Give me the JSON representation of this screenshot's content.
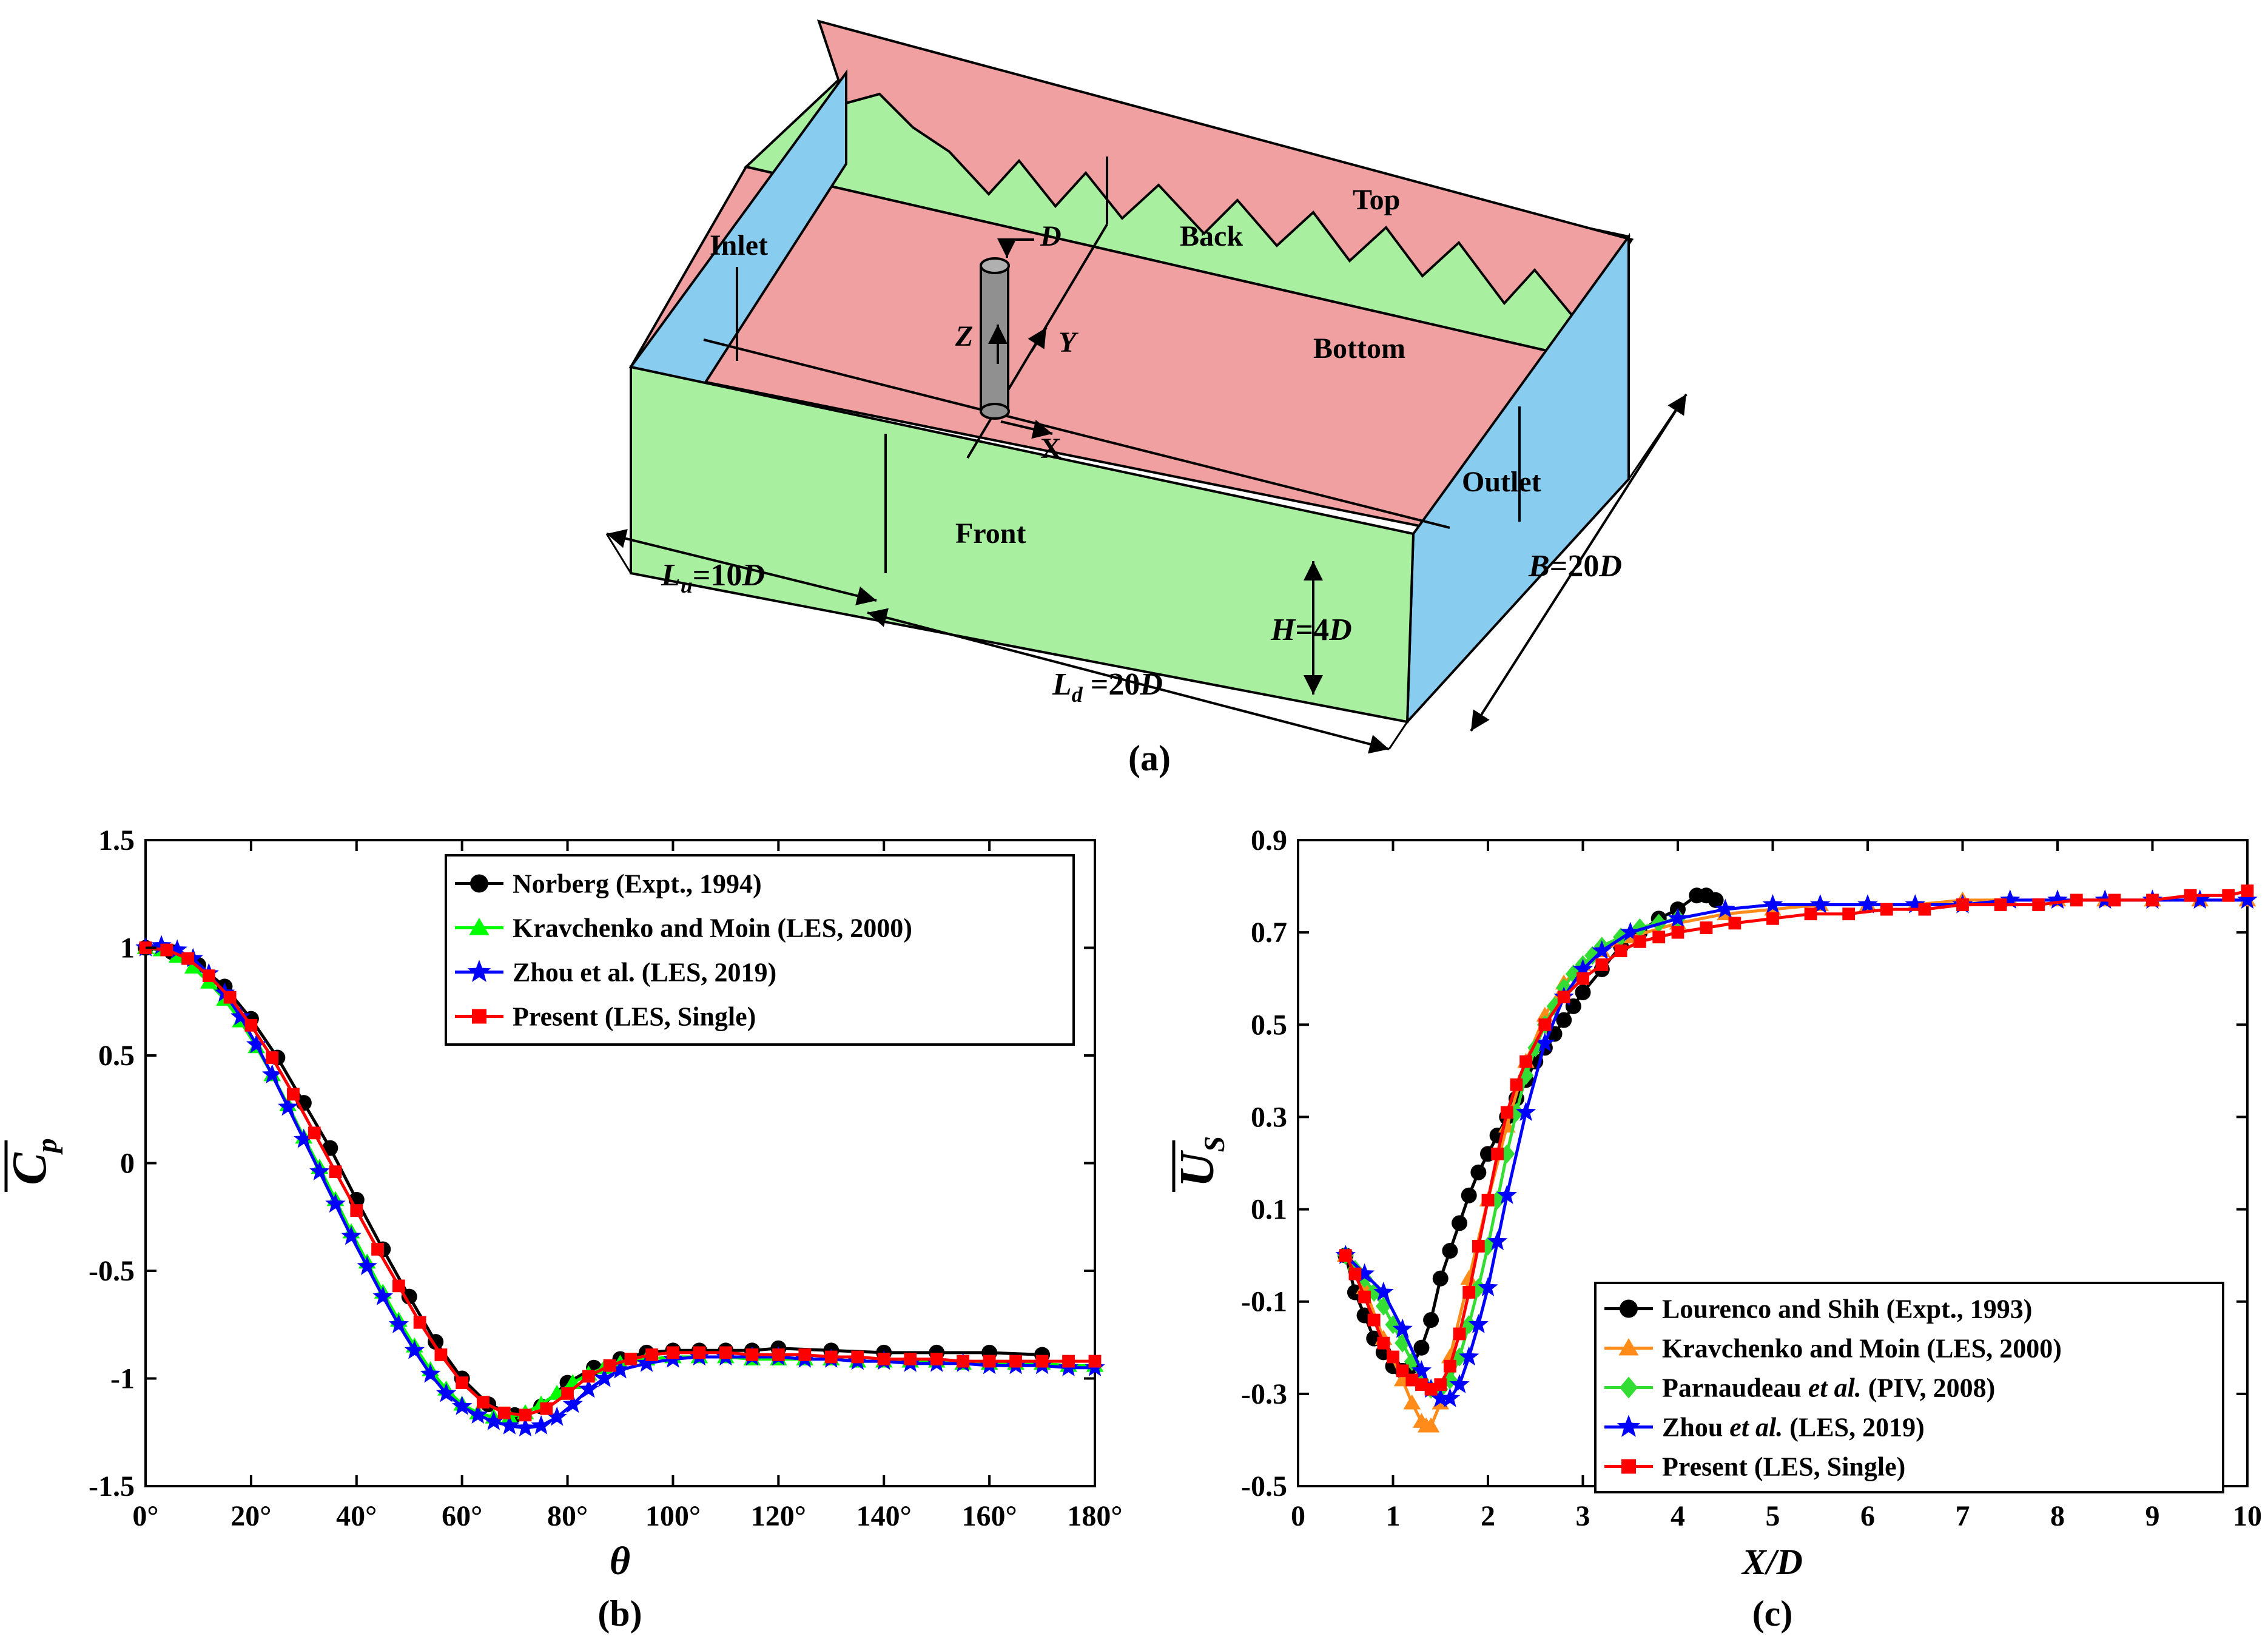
{
  "colors": {
    "black": "#000000",
    "green": "#00ff00",
    "blue": "#0000ff",
    "red": "#ff0000",
    "orange": "#ff8c1a",
    "limegreen": "#33dd33",
    "face_pink": "#f0a0a0",
    "face_green": "#a8f0a0",
    "face_blue": "#88ccf0",
    "cylinder": "#909090"
  },
  "panel_a": {
    "caption": "(a)",
    "labels": {
      "inlet": "Inlet",
      "outlet": "Outlet",
      "top": "Top",
      "back": "Back",
      "bottom": "Bottom",
      "front": "Front",
      "d": "D",
      "z": "Z",
      "y": "Y",
      "x": "X",
      "lu": "L",
      "lu_sub": "u",
      "lu_val": "=10",
      "lu_d": "D",
      "ld": "L",
      "ld_sub": "d",
      "ld_val": " =20",
      "ld_d": "D",
      "h": "H",
      "h_val": "=4",
      "h_d": "D",
      "b": "B",
      "b_val": "=20",
      "b_d": "D"
    }
  },
  "chart_data": [
    {
      "type": "line",
      "panel": "(b)",
      "caption": "(b)",
      "xlabel": "θ",
      "ylabel": "C",
      "ylabel_sub": "p",
      "xlim": [
        0,
        180
      ],
      "ylim": [
        -1.5,
        1.5
      ],
      "xticks": [
        0,
        20,
        40,
        60,
        80,
        100,
        120,
        140,
        160,
        180
      ],
      "xtick_labels": [
        "0°",
        "20°",
        "40°",
        "60°",
        "80°",
        "100°",
        "120°",
        "140°",
        "160°",
        "180°"
      ],
      "yticks": [
        -1.5,
        -1,
        -0.5,
        0,
        0.5,
        1,
        1.5
      ],
      "ytick_labels": [
        "-1.5",
        "-1",
        "-0.5",
        "0",
        "0.5",
        "1",
        "1.5"
      ],
      "legend_position": "top-right",
      "series": [
        {
          "name": "Norberg (Expt., 1994)",
          "color": "#000000",
          "marker": "circle",
          "x": [
            0,
            5,
            10,
            15,
            20,
            25,
            30,
            35,
            40,
            45,
            50,
            55,
            60,
            65,
            70,
            75,
            80,
            85,
            90,
            95,
            100,
            105,
            110,
            115,
            120,
            130,
            140,
            150,
            160,
            170
          ],
          "y": [
            1.0,
            0.98,
            0.92,
            0.82,
            0.67,
            0.49,
            0.28,
            0.07,
            -0.17,
            -0.4,
            -0.62,
            -0.83,
            -1.0,
            -1.12,
            -1.17,
            -1.13,
            -1.02,
            -0.95,
            -0.91,
            -0.88,
            -0.87,
            -0.87,
            -0.87,
            -0.87,
            -0.86,
            -0.87,
            -0.88,
            -0.88,
            -0.88,
            -0.89
          ]
        },
        {
          "name": "Kravchenko and Moin (LES, 2000)",
          "color": "#00ff00",
          "marker": "triangle",
          "x": [
            0,
            3,
            6,
            9,
            12,
            15,
            18,
            21,
            24,
            27,
            30,
            33,
            36,
            39,
            42,
            45,
            48,
            51,
            54,
            57,
            60,
            63,
            66,
            69,
            72,
            75,
            78,
            81,
            84,
            87,
            90,
            95,
            100,
            105,
            110,
            115,
            120,
            125,
            130,
            135,
            140,
            145,
            150,
            155,
            160,
            165,
            170,
            175,
            180
          ],
          "y": [
            1.0,
            0.99,
            0.96,
            0.91,
            0.84,
            0.76,
            0.66,
            0.54,
            0.41,
            0.27,
            0.12,
            -0.02,
            -0.17,
            -0.32,
            -0.46,
            -0.6,
            -0.73,
            -0.85,
            -0.96,
            -1.05,
            -1.12,
            -1.16,
            -1.18,
            -1.18,
            -1.16,
            -1.12,
            -1.07,
            -1.02,
            -0.98,
            -0.95,
            -0.93,
            -0.91,
            -0.9,
            -0.9,
            -0.9,
            -0.91,
            -0.91,
            -0.91,
            -0.91,
            -0.92,
            -0.92,
            -0.92,
            -0.92,
            -0.93,
            -0.93,
            -0.93,
            -0.93,
            -0.94,
            -0.94
          ]
        },
        {
          "name": "Zhou et al. (LES, 2019)",
          "color": "#0000ff",
          "marker": "star",
          "x": [
            0,
            3,
            6,
            9,
            12,
            15,
            18,
            21,
            24,
            27,
            30,
            33,
            36,
            39,
            42,
            45,
            48,
            51,
            54,
            57,
            60,
            63,
            66,
            69,
            72,
            75,
            78,
            81,
            84,
            87,
            90,
            95,
            100,
            105,
            110,
            115,
            120,
            125,
            130,
            135,
            140,
            145,
            150,
            155,
            160,
            165,
            170,
            175,
            180
          ],
          "y": [
            1.0,
            1.01,
            0.99,
            0.95,
            0.88,
            0.79,
            0.68,
            0.55,
            0.41,
            0.26,
            0.11,
            -0.04,
            -0.19,
            -0.34,
            -0.48,
            -0.62,
            -0.75,
            -0.87,
            -0.98,
            -1.07,
            -1.13,
            -1.17,
            -1.2,
            -1.22,
            -1.23,
            -1.22,
            -1.18,
            -1.12,
            -1.05,
            -1.0,
            -0.96,
            -0.93,
            -0.91,
            -0.9,
            -0.9,
            -0.9,
            -0.9,
            -0.91,
            -0.91,
            -0.92,
            -0.92,
            -0.93,
            -0.93,
            -0.93,
            -0.94,
            -0.94,
            -0.94,
            -0.95,
            -0.95
          ]
        },
        {
          "name": "Present (LES, Single)",
          "color": "#ff0000",
          "marker": "square",
          "x": [
            0,
            4,
            8,
            12,
            16,
            20,
            24,
            28,
            32,
            36,
            40,
            44,
            48,
            52,
            56,
            60,
            64,
            68,
            72,
            76,
            80,
            84,
            88,
            92,
            96,
            100,
            105,
            110,
            115,
            120,
            125,
            130,
            135,
            140,
            145,
            150,
            155,
            160,
            165,
            170,
            175,
            180
          ],
          "y": [
            1.0,
            0.99,
            0.95,
            0.87,
            0.77,
            0.64,
            0.49,
            0.32,
            0.14,
            -0.04,
            -0.22,
            -0.4,
            -0.57,
            -0.74,
            -0.89,
            -1.02,
            -1.11,
            -1.16,
            -1.17,
            -1.14,
            -1.07,
            -0.99,
            -0.94,
            -0.91,
            -0.89,
            -0.88,
            -0.88,
            -0.88,
            -0.89,
            -0.89,
            -0.89,
            -0.9,
            -0.9,
            -0.91,
            -0.91,
            -0.91,
            -0.92,
            -0.92,
            -0.92,
            -0.92,
            -0.92,
            -0.92
          ]
        }
      ]
    },
    {
      "type": "line",
      "panel": "(c)",
      "caption": "(c)",
      "xlabel": "X/D",
      "ylabel": "U",
      "ylabel_sub": "S",
      "xlim": [
        0,
        10
      ],
      "ylim": [
        -0.5,
        0.9
      ],
      "xticks": [
        0,
        1,
        2,
        3,
        4,
        5,
        6,
        7,
        8,
        9,
        10
      ],
      "xtick_labels": [
        "0",
        "1",
        "2",
        "3",
        "4",
        "5",
        "6",
        "7",
        "8",
        "9",
        "10"
      ],
      "yticks": [
        -0.5,
        -0.3,
        -0.1,
        0.1,
        0.3,
        0.5,
        0.7,
        0.9
      ],
      "ytick_labels": [
        "-0.5",
        "-0.3",
        "-0.1",
        "0.1",
        "0.3",
        "0.5",
        "0.7",
        "0.9"
      ],
      "legend_position": "bottom-right",
      "legend": [
        {
          "parts": [
            "Lourenco and Shih (Expt., 1993)"
          ],
          "italic": [
            false
          ]
        },
        {
          "parts": [
            "Kravchenko and Moin (LES, 2000)"
          ],
          "italic": [
            false
          ]
        },
        {
          "parts": [
            "Parnaudeau ",
            "et al.",
            " (PIV, 2008)"
          ],
          "italic": [
            false,
            true,
            false
          ]
        },
        {
          "parts": [
            "Zhou ",
            "et al.",
            " (LES, 2019)"
          ],
          "italic": [
            false,
            true,
            false
          ]
        },
        {
          "parts": [
            "Present (LES, Single)"
          ],
          "italic": [
            false
          ]
        }
      ],
      "series": [
        {
          "name": "Lourenco and Shih (Expt., 1993)",
          "color": "#000000",
          "marker": "circle",
          "x": [
            0.5,
            0.6,
            0.7,
            0.8,
            0.9,
            1.0,
            1.1,
            1.2,
            1.3,
            1.4,
            1.5,
            1.6,
            1.7,
            1.8,
            1.9,
            2.0,
            2.1,
            2.2,
            2.3,
            2.4,
            2.5,
            2.6,
            2.7,
            2.8,
            2.9,
            3.0,
            3.2,
            3.4,
            3.6,
            3.8,
            4.0,
            4.2,
            4.3,
            4.4
          ],
          "y": [
            0.0,
            -0.08,
            -0.13,
            -0.18,
            -0.21,
            -0.24,
            -0.25,
            -0.24,
            -0.2,
            -0.14,
            -0.05,
            0.01,
            0.07,
            0.13,
            0.18,
            0.22,
            0.26,
            0.3,
            0.34,
            0.38,
            0.42,
            0.45,
            0.48,
            0.51,
            0.54,
            0.57,
            0.62,
            0.67,
            0.7,
            0.73,
            0.75,
            0.78,
            0.78,
            0.77
          ]
        },
        {
          "name": "Kravchenko and Moin (LES, 2000)",
          "color": "#ff8c1a",
          "marker": "triangle",
          "x": [
            0.5,
            0.7,
            0.9,
            1.1,
            1.2,
            1.3,
            1.35,
            1.4,
            1.5,
            1.6,
            1.8,
            2.0,
            2.2,
            2.4,
            2.6,
            2.8,
            3.0,
            3.2,
            3.5,
            4.0,
            4.5,
            5.0,
            5.5,
            6.0,
            6.5,
            7.0,
            7.5,
            8.0,
            8.5,
            9.0,
            9.5,
            10.0
          ],
          "y": [
            0.0,
            -0.07,
            -0.18,
            -0.27,
            -0.32,
            -0.36,
            -0.37,
            -0.37,
            -0.32,
            -0.22,
            -0.05,
            0.12,
            0.28,
            0.42,
            0.52,
            0.59,
            0.63,
            0.66,
            0.69,
            0.72,
            0.74,
            0.75,
            0.76,
            0.76,
            0.76,
            0.77,
            0.77,
            0.77,
            0.77,
            0.77,
            0.77,
            0.77
          ]
        },
        {
          "name": "Parnaudeau et al. (PIV, 2008)",
          "color": "#33dd33",
          "marker": "diamond",
          "x": [
            0.5,
            0.6,
            0.7,
            0.8,
            0.9,
            1.0,
            1.1,
            1.2,
            1.3,
            1.4,
            1.5,
            1.6,
            1.7,
            1.8,
            1.9,
            2.0,
            2.1,
            2.2,
            2.3,
            2.4,
            2.5,
            2.6,
            2.7,
            2.8,
            2.9,
            3.0,
            3.1,
            3.2,
            3.4,
            3.6,
            3.8,
            4.0
          ],
          "y": [
            0.0,
            -0.03,
            -0.05,
            -0.08,
            -0.11,
            -0.15,
            -0.19,
            -0.23,
            -0.27,
            -0.29,
            -0.29,
            -0.27,
            -0.22,
            -0.15,
            -0.07,
            0.02,
            0.12,
            0.22,
            0.31,
            0.39,
            0.45,
            0.5,
            0.54,
            0.58,
            0.61,
            0.63,
            0.65,
            0.67,
            0.69,
            0.71,
            0.72,
            0.73
          ]
        },
        {
          "name": "Zhou et al. (LES, 2019)",
          "color": "#0000ff",
          "marker": "star",
          "x": [
            0.5,
            0.7,
            0.9,
            1.1,
            1.3,
            1.4,
            1.5,
            1.6,
            1.7,
            1.8,
            1.9,
            2.0,
            2.1,
            2.2,
            2.4,
            2.6,
            2.8,
            3.0,
            3.2,
            3.5,
            4.0,
            4.5,
            5.0,
            5.5,
            6.0,
            6.5,
            7.0,
            7.5,
            8.0,
            8.5,
            9.0,
            9.5,
            10.0
          ],
          "y": [
            0.0,
            -0.04,
            -0.08,
            -0.16,
            -0.25,
            -0.29,
            -0.31,
            -0.31,
            -0.28,
            -0.22,
            -0.15,
            -0.07,
            0.03,
            0.13,
            0.31,
            0.46,
            0.56,
            0.62,
            0.66,
            0.7,
            0.73,
            0.75,
            0.76,
            0.76,
            0.76,
            0.76,
            0.76,
            0.77,
            0.77,
            0.77,
            0.77,
            0.77,
            0.77
          ]
        },
        {
          "name": "Present (LES, Single)",
          "color": "#ff0000",
          "marker": "square",
          "x": [
            0.5,
            0.6,
            0.7,
            0.8,
            0.9,
            1.0,
            1.1,
            1.2,
            1.3,
            1.4,
            1.5,
            1.6,
            1.7,
            1.8,
            1.9,
            2.0,
            2.1,
            2.2,
            2.3,
            2.4,
            2.6,
            2.8,
            3.0,
            3.2,
            3.4,
            3.6,
            3.8,
            4.0,
            4.3,
            4.6,
            5.0,
            5.4,
            5.8,
            6.2,
            6.6,
            7.0,
            7.4,
            7.8,
            8.2,
            8.6,
            9.0,
            9.4,
            9.8,
            10.0
          ],
          "y": [
            0.0,
            -0.04,
            -0.09,
            -0.14,
            -0.19,
            -0.22,
            -0.25,
            -0.27,
            -0.28,
            -0.29,
            -0.28,
            -0.24,
            -0.17,
            -0.08,
            0.02,
            0.12,
            0.22,
            0.31,
            0.37,
            0.42,
            0.5,
            0.56,
            0.6,
            0.63,
            0.66,
            0.68,
            0.69,
            0.7,
            0.71,
            0.72,
            0.73,
            0.74,
            0.74,
            0.75,
            0.75,
            0.76,
            0.76,
            0.76,
            0.77,
            0.77,
            0.77,
            0.78,
            0.78,
            0.79
          ]
        }
      ]
    }
  ]
}
